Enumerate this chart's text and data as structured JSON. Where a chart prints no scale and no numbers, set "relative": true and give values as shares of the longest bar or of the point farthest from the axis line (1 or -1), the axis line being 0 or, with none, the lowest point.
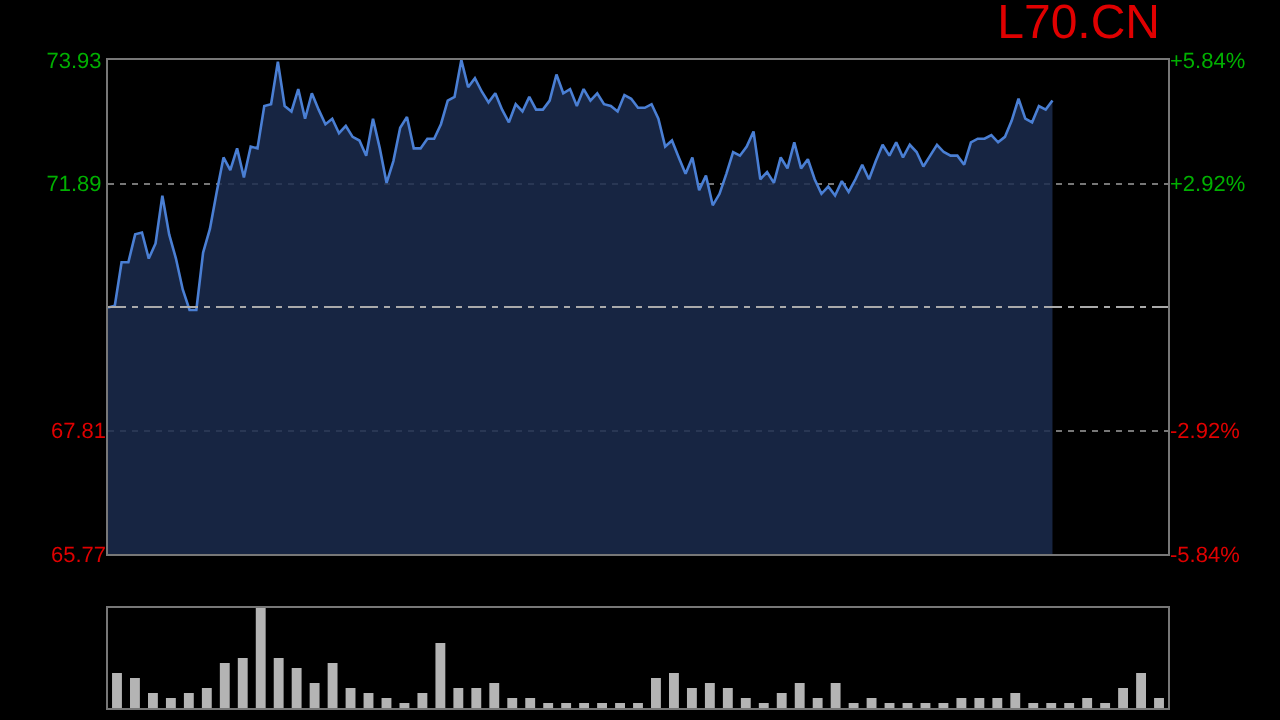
{
  "chart_data": [
    {
      "type": "area",
      "title": "L70.CN",
      "categories": [
        null,
        null,
        null,
        null,
        null,
        null,
        null,
        null,
        null,
        null,
        null,
        null,
        null,
        null,
        null,
        null,
        null,
        null,
        null,
        null,
        null,
        null,
        null,
        null,
        null,
        null,
        null,
        null,
        null,
        null,
        null,
        null,
        null,
        null,
        null,
        null,
        null,
        null,
        null,
        null,
        null,
        null,
        null,
        null,
        null,
        null,
        null,
        null,
        null,
        null,
        null,
        null,
        null,
        null,
        null,
        null,
        null,
        null,
        null,
        null,
        null,
        null,
        null,
        null,
        null,
        null,
        null,
        null,
        null,
        null,
        null,
        null,
        null,
        null,
        null,
        null,
        null,
        null,
        null,
        null,
        null,
        null,
        null,
        null,
        null,
        null,
        null,
        null,
        null,
        null,
        null,
        null,
        null,
        null,
        null,
        null,
        null,
        null,
        null,
        null,
        null,
        null,
        null,
        null,
        null,
        null,
        null,
        null,
        null,
        null,
        null,
        null,
        null,
        null,
        null,
        null,
        null,
        null,
        null,
        null,
        null,
        null,
        null,
        null,
        null,
        null,
        null,
        null,
        null,
        null,
        null,
        null,
        null,
        null,
        null,
        null,
        null,
        null,
        null,
        null,
        null,
        null,
        null,
        null,
        null,
        null,
        null,
        null,
        null,
        null,
        null,
        null,
        null,
        null,
        null,
        null,
        null
      ],
      "series": [
        {
          "color": "#4a7fd4",
          "values": [
            69.84,
            69.87,
            70.59,
            70.59,
            71.05,
            71.08,
            70.65,
            70.9,
            71.69,
            71.05,
            70.65,
            70.14,
            69.8,
            69.8,
            70.75,
            71.14,
            71.75,
            72.32,
            72.11,
            72.47,
            71.99,
            72.5,
            72.47,
            73.17,
            73.2,
            73.9,
            73.17,
            73.08,
            73.45,
            72.96,
            73.38,
            73.11,
            72.87,
            72.96,
            72.72,
            72.84,
            72.66,
            72.6,
            72.35,
            72.96,
            72.47,
            71.9,
            72.26,
            72.81,
            72.99,
            72.47,
            72.47,
            72.63,
            72.63,
            72.87,
            73.26,
            73.32,
            73.93,
            73.48,
            73.63,
            73.41,
            73.23,
            73.38,
            73.11,
            72.9,
            73.2,
            73.08,
            73.32,
            73.11,
            73.11,
            73.26,
            73.69,
            73.38,
            73.45,
            73.17,
            73.45,
            73.26,
            73.38,
            73.2,
            73.17,
            73.08,
            73.35,
            73.29,
            73.14,
            73.14,
            73.2,
            72.96,
            72.5,
            72.6,
            72.32,
            72.05,
            72.32,
            71.78,
            72.02,
            71.53,
            71.72,
            72.05,
            72.41,
            72.35,
            72.5,
            72.75,
            71.96,
            72.08,
            71.9,
            72.32,
            72.14,
            72.57,
            72.14,
            72.29,
            71.96,
            71.72,
            71.84,
            71.69,
            71.93,
            71.75,
            71.96,
            72.2,
            71.96,
            72.26,
            72.53,
            72.35,
            72.57,
            72.32,
            72.53,
            72.41,
            72.17,
            72.35,
            72.53,
            72.41,
            72.35,
            72.35,
            72.2,
            72.57,
            72.63,
            72.63,
            72.69,
            72.57,
            72.66,
            72.93,
            73.29,
            72.96,
            72.9,
            73.17,
            73.11,
            73.26,
            null,
            null,
            null,
            null,
            null,
            null,
            null,
            null,
            null,
            null,
            null,
            null,
            null,
            null,
            null,
            null,
            null
          ]
        }
      ],
      "ylim": [
        65.77,
        73.93
      ],
      "yticks": [
        65.77,
        67.81,
        71.89,
        73.93
      ],
      "y2lim": [
        -5.84,
        5.84
      ],
      "y2ticks": [
        {
          "value": -5.84,
          "label": "-5.84%"
        },
        {
          "value": -2.92,
          "label": "-2.92%"
        },
        {
          "value": 0,
          "label": null
        },
        {
          "value": 2.92,
          "label": "+2.92%"
        },
        {
          "value": 5.84,
          "label": "+5.84%"
        }
      ],
      "ref_lines": [
        {
          "axis": "y",
          "value": 69.85,
          "color": "#aaaaaa",
          "line_style": "dashed"
        }
      ],
      "grid": "y",
      "tick_labels": "y",
      "legend": false
    },
    {
      "type": "bar",
      "relative": true,
      "color": "#b4b4b4",
      "categories": [
        null,
        null,
        null,
        null,
        null,
        null,
        null,
        null,
        null,
        null,
        null,
        null,
        null,
        null,
        null,
        null,
        null,
        null,
        null,
        null,
        null,
        null,
        null,
        null,
        null,
        null,
        null,
        null,
        null,
        null,
        null,
        null,
        null,
        null,
        null,
        null,
        null,
        null,
        null,
        null,
        null,
        null,
        null,
        null,
        null,
        null,
        null,
        null,
        null,
        null,
        null,
        null,
        null,
        null,
        null,
        null,
        null,
        null,
        null
      ],
      "values": [
        0.35,
        0.3,
        0.15,
        0.1,
        0.15,
        0.2,
        0.45,
        0.5,
        1.0,
        0.5,
        0.4,
        0.25,
        0.45,
        0.2,
        0.15,
        0.1,
        0.05,
        0.15,
        0.65,
        0.2,
        0.2,
        0.25,
        0.1,
        0.1,
        0.05,
        0.05,
        0.05,
        0.05,
        0.05,
        0.05,
        0.3,
        0.35,
        0.2,
        0.25,
        0.2,
        0.1,
        0.05,
        0.15,
        0.25,
        0.1,
        0.25,
        0.05,
        0.1,
        0.05,
        0.05,
        0.05,
        0.05,
        0.1,
        0.1,
        0.1,
        0.15,
        0.05,
        0.05,
        0.05,
        0.1,
        0.05,
        0.2,
        0.35,
        0.1
      ],
      "tick_labels": false,
      "legend": false
    }
  ]
}
